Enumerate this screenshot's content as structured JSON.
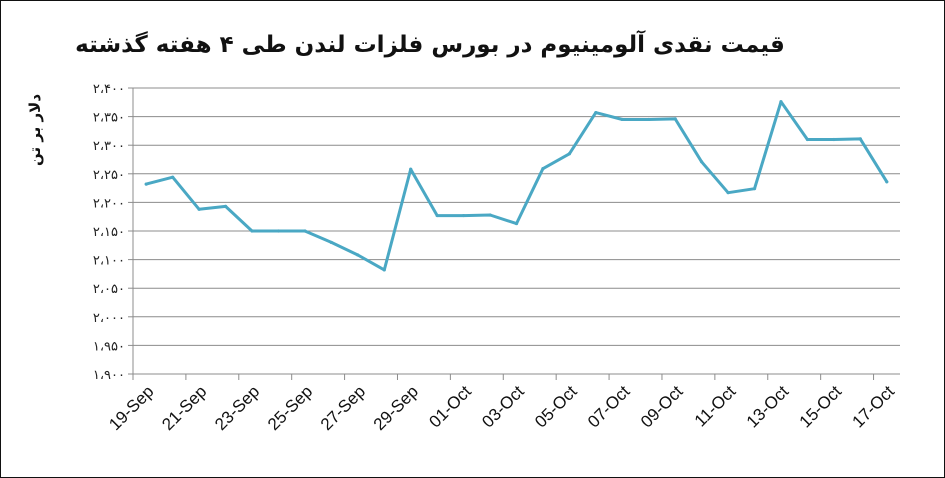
{
  "chart_data": {
    "type": "line",
    "title": "قیمت نقدی آلومینیوم در بورس فلزات لندن طی ۴ هفته گذشته",
    "ylabel": "دلار بر تن",
    "xlabel": "",
    "ylim": [
      1900,
      2400
    ],
    "yticks": [
      1900,
      1950,
      2000,
      2050,
      2100,
      2150,
      2200,
      2250,
      2300,
      2350,
      2400
    ],
    "ytick_labels": [
      "۱،۹۰۰",
      "۱،۹۵۰",
      "۲،۰۰۰",
      "۲،۰۵۰",
      "۲،۱۰۰",
      "۲،۱۵۰",
      "۲،۲۰۰",
      "۲،۲۵۰",
      "۲،۳۰۰",
      "۲،۳۵۰",
      "۲،۴۰۰"
    ],
    "x_labels": [
      "19-Sep",
      "21-Sep",
      "23-Sep",
      "25-Sep",
      "27-Sep",
      "29-Sep",
      "01-Oct",
      "03-Oct",
      "05-Oct",
      "07-Oct",
      "09-Oct",
      "11-Oct",
      "13-Oct",
      "15-Oct",
      "17-Oct"
    ],
    "x": [
      "19-Sep",
      "20-Sep",
      "21-Sep",
      "22-Sep",
      "23-Sep",
      "24-Sep",
      "25-Sep",
      "26-Sep",
      "27-Sep",
      "28-Sep",
      "29-Sep",
      "30-Sep",
      "01-Oct",
      "02-Oct",
      "03-Oct",
      "04-Oct",
      "05-Oct",
      "06-Oct",
      "07-Oct",
      "08-Oct",
      "09-Oct",
      "10-Oct",
      "11-Oct",
      "12-Oct",
      "13-Oct",
      "14-Oct",
      "15-Oct",
      "16-Oct",
      "17-Oct"
    ],
    "series": [
      {
        "values": [
          2232,
          2244,
          2188,
          2193,
          2150,
          2150,
          2150,
          2130,
          2108,
          2082,
          2258,
          2177,
          2177,
          2178,
          2163,
          2259,
          2285,
          2357,
          2345,
          2345,
          2346,
          2271,
          2217,
          2224,
          2376,
          2310,
          2310,
          2311,
          2236
        ],
        "color": "#4aa8c4"
      }
    ],
    "grid": "horizontal",
    "legend": "none"
  }
}
